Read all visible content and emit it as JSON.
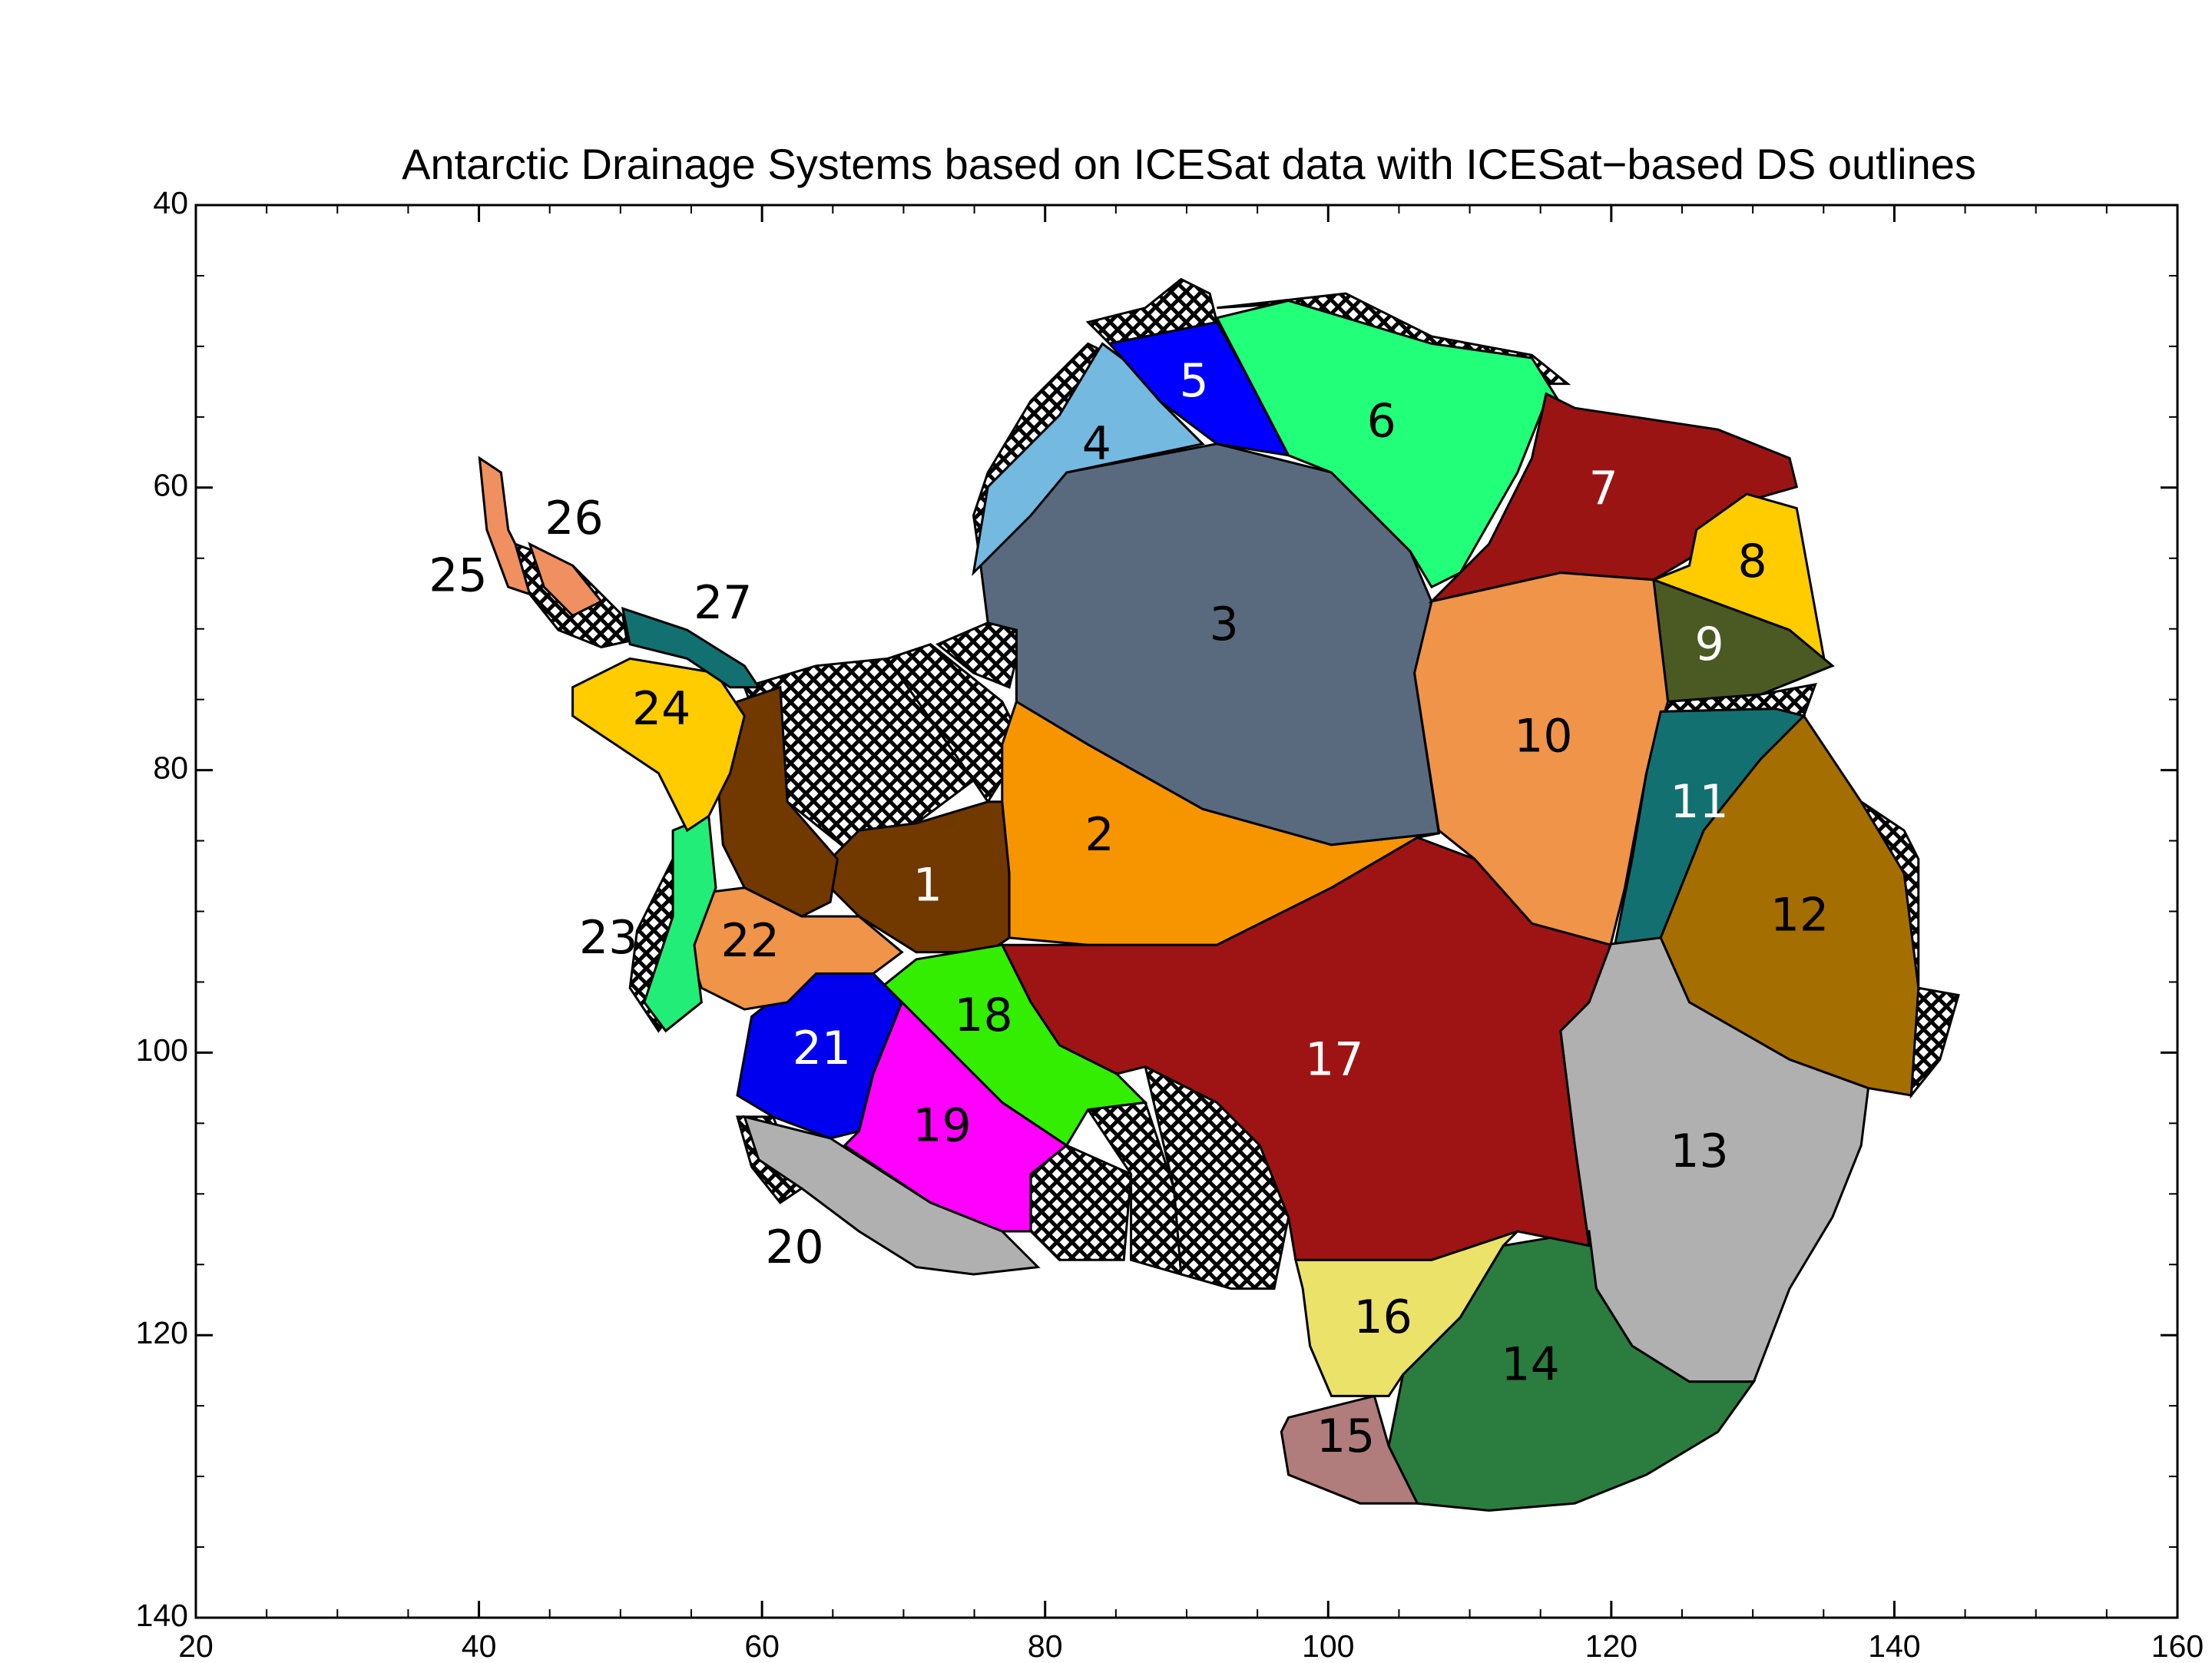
{
  "map": {
    "title": "Antarctic Drainage Systems based on ICESat data with ICESat−based DS outlines",
    "xlim": [
      20,
      160
    ],
    "xticks": [
      20,
      40,
      60,
      80,
      100,
      120,
      140,
      160
    ],
    "ylim": [
      40,
      140
    ],
    "yticks": [
      40,
      60,
      80,
      100,
      120,
      140
    ],
    "regions": [
      {
        "label": "1",
        "color": "#713800"
      },
      {
        "label": "2",
        "color": "#f79500"
      },
      {
        "label": "3",
        "color": "#5a6a7e"
      },
      {
        "label": "4",
        "color": "#74b9e0"
      },
      {
        "label": "5",
        "color": "#0000ff"
      },
      {
        "label": "6",
        "color": "#22ff78"
      },
      {
        "label": "7",
        "color": "#9b1414"
      },
      {
        "label": "8",
        "color": "#ffcc00"
      },
      {
        "label": "9",
        "color": "#4a5a22"
      },
      {
        "label": "10",
        "color": "#f0944a"
      },
      {
        "label": "11",
        "color": "#137070"
      },
      {
        "label": "12",
        "color": "#a56e00"
      },
      {
        "label": "13",
        "color": "#b0b0b0"
      },
      {
        "label": "14",
        "color": "#2a7d3f"
      },
      {
        "label": "15",
        "color": "#b07c7c"
      },
      {
        "label": "16",
        "color": "#ebe26a"
      },
      {
        "label": "17",
        "color": "#9e1414"
      },
      {
        "label": "18",
        "color": "#33ee00"
      },
      {
        "label": "19",
        "color": "#ff00ff"
      },
      {
        "label": "20",
        "color": "#b0b0b0"
      },
      {
        "label": "21",
        "color": "#0000ee"
      },
      {
        "label": "22",
        "color": "#ef9448"
      },
      {
        "label": "23",
        "color": "#22ee77"
      },
      {
        "label": "24",
        "color": "#ffcc00"
      },
      {
        "label": "25",
        "color": "#f09060"
      },
      {
        "label": "26",
        "color": "#f09060"
      },
      {
        "label": "27",
        "color": "#137070"
      }
    ]
  }
}
